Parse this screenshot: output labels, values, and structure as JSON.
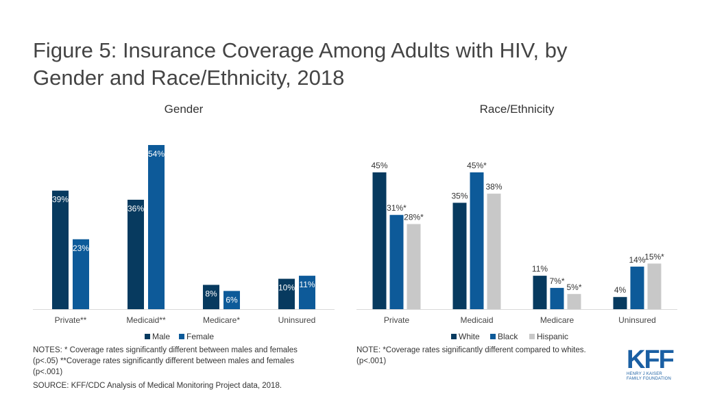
{
  "title_line1": "Figure 5: Insurance Coverage Among Adults with HIV, by",
  "title_line2": "Gender and Race/Ethnicity, 2018",
  "chart_data": [
    {
      "type": "bar",
      "title": "Gender",
      "categories": [
        "Private**",
        "Medicaid**",
        "Medicare*",
        "Uninsured"
      ],
      "series": [
        {
          "name": "Male",
          "color": "#073a5f",
          "values": [
            39,
            36,
            8,
            10
          ],
          "labels": [
            "39%",
            "36%",
            "8%",
            "10%"
          ]
        },
        {
          "name": "Female",
          "color": "#0d5a99",
          "values": [
            23,
            54,
            6,
            11
          ],
          "labels": [
            "23%",
            "54%",
            "6%",
            "11%"
          ]
        }
      ],
      "ylim": [
        0,
        60
      ],
      "grid": false,
      "legend": "bottom"
    },
    {
      "type": "bar",
      "title": "Race/Ethnicity",
      "categories": [
        "Private",
        "Medicaid",
        "Medicare",
        "Uninsured"
      ],
      "series": [
        {
          "name": "White",
          "color": "#073a5f",
          "values": [
            45,
            35,
            11,
            4
          ],
          "labels": [
            "45%",
            "35%",
            "11%",
            "4%"
          ]
        },
        {
          "name": "Black",
          "color": "#0d5a99",
          "values": [
            31,
            45,
            7,
            14
          ],
          "labels": [
            "31%*",
            "45%*",
            "7%*",
            "14%"
          ]
        },
        {
          "name": "Hispanic",
          "color": "#c8c8c8",
          "values": [
            28,
            38,
            5,
            15
          ],
          "labels": [
            "28%*",
            "38%",
            "5%*",
            "15%*"
          ]
        }
      ],
      "ylim": [
        0,
        60
      ],
      "grid": false,
      "legend": "bottom"
    }
  ],
  "notes_left": {
    "line1": "NOTES: * Coverage rates significantly different between males and females",
    "line2": "(p<.05) **Coverage rates significantly different between males and females",
    "line3": "(p<.001)"
  },
  "source": "SOURCE: KFF/CDC Analysis of Medical Monitoring Project data, 2018.",
  "notes_right": {
    "line1": "NOTE: *Coverage rates significantly different compared to whites.",
    "line2": "(p<.001)"
  },
  "logo": {
    "mark": "KFF",
    "line1": "HENRY J KAISER",
    "line2": "FAMILY FOUNDATION"
  }
}
